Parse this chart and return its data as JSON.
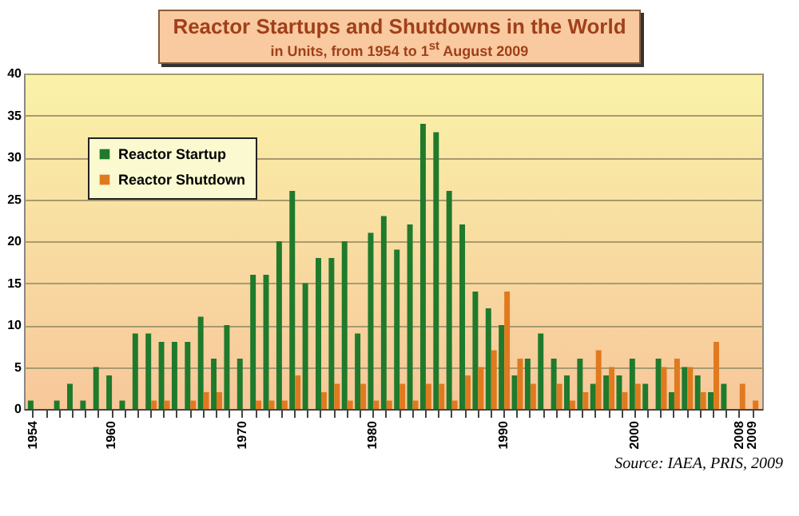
{
  "chart_data": {
    "type": "bar",
    "title": "Reactor Startups and Shutdowns in the World",
    "subtitle": "in Units, from 1954 to 1$^{st}$ August 2009",
    "categories": [
      "1954",
      null,
      null,
      null,
      null,
      null,
      "1960",
      null,
      null,
      null,
      null,
      null,
      null,
      null,
      null,
      null,
      "1970",
      null,
      null,
      null,
      null,
      null,
      null,
      null,
      null,
      null,
      "1980",
      null,
      null,
      null,
      null,
      null,
      null,
      null,
      null,
      null,
      "1990",
      null,
      null,
      null,
      null,
      null,
      null,
      null,
      null,
      null,
      "2000",
      null,
      null,
      null,
      null,
      null,
      null,
      null,
      "2008",
      "2009"
    ],
    "series": [
      {
        "name": "Reactor Startup",
        "color": "#1f7a2c",
        "values": [
          1,
          0,
          1,
          3,
          1,
          5,
          4,
          1,
          9,
          9,
          8,
          8,
          8,
          11,
          6,
          10,
          6,
          16,
          16,
          20,
          26,
          15,
          18,
          18,
          20,
          9,
          21,
          23,
          19,
          22,
          34,
          33,
          26,
          22,
          14,
          12,
          10,
          4,
          6,
          9,
          6,
          4,
          6,
          3,
          4,
          4,
          6,
          3,
          6,
          2,
          5,
          4,
          2,
          3,
          0,
          0
        ]
      },
      {
        "name": "Reactor Shutdown",
        "color": "#e07a1f",
        "values": [
          0,
          0,
          0,
          0,
          0,
          0,
          0,
          0,
          0,
          1,
          1,
          0,
          1,
          2,
          2,
          0,
          0,
          1,
          1,
          1,
          4,
          0,
          2,
          3,
          1,
          3,
          1,
          1,
          3,
          1,
          3,
          3,
          1,
          4,
          5,
          7,
          14,
          6,
          3,
          0,
          3,
          1,
          2,
          7,
          5,
          2,
          3,
          0,
          5,
          6,
          5,
          2,
          8,
          0,
          3,
          1
        ]
      }
    ],
    "ylim": [
      0,
      40
    ],
    "yticks": [
      0,
      5,
      10,
      15,
      20,
      25,
      30,
      35,
      40
    ],
    "grid": "y",
    "legend": "top left",
    "annotations": [
      "Source: IAEA, PRIS, 2009"
    ]
  }
}
